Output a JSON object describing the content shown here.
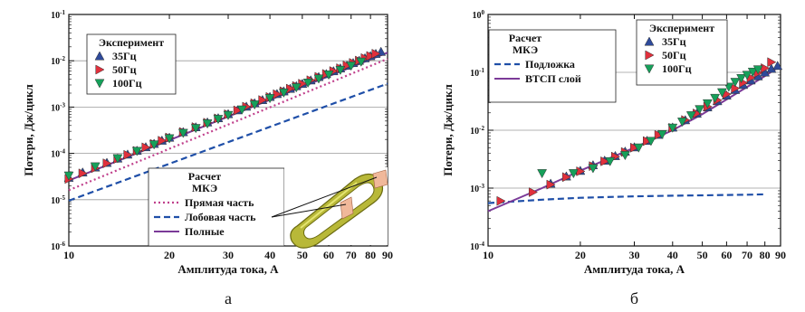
{
  "colors": {
    "s35": "#2e4a9a",
    "s50": "#e0303c",
    "s100": "#16a05a",
    "model_straight": "#c0408c",
    "model_end": "#1f4fa8",
    "model_total": "#7b3a98",
    "model_layer": "#7b3a98",
    "grid": "#9a9a9a"
  },
  "chart_data": [
    {
      "type": "scatter",
      "panel_label": "а",
      "xlabel": "Амплитуда тока, А",
      "ylabel": "Потери, Дж/цикл",
      "x_scale": "log",
      "y_scale": "log",
      "xlim": [
        10,
        90
      ],
      "ylim": [
        1e-06,
        0.1
      ],
      "x_ticks": [
        "10",
        "20",
        "30",
        "40",
        "50",
        "60",
        "70",
        "80",
        "90"
      ],
      "y_ticks": [
        {
          "base": "10",
          "exp": "-6"
        },
        {
          "base": "10",
          "exp": "-5"
        },
        {
          "base": "10",
          "exp": "-4"
        },
        {
          "base": "10",
          "exp": "-3"
        },
        {
          "base": "10",
          "exp": "-2"
        },
        {
          "base": "10",
          "exp": "-1"
        }
      ],
      "grid": "horizontal",
      "legend_experiment": {
        "title": "Эксперимент",
        "entries": [
          {
            "label": "35Гц",
            "marker": "triangle-up",
            "series": "s35"
          },
          {
            "label": "50Гц",
            "marker": "triangle-right",
            "series": "s50"
          },
          {
            "label": "100Гц",
            "marker": "triangle-down",
            "series": "s100"
          }
        ]
      },
      "legend_model": {
        "title_line1": "Расчет",
        "title_line2": "МКЭ",
        "entries": [
          {
            "label": "Прямая часть",
            "style": "dotted",
            "series": "model_straight"
          },
          {
            "label": "Лобовая часть",
            "style": "dashed",
            "series": "model_end"
          },
          {
            "label": "Полные",
            "style": "solid",
            "series": "model_total"
          }
        ]
      },
      "series": [
        {
          "key": "s35",
          "x": [
            10,
            11,
            12,
            13,
            14,
            15,
            16,
            17,
            18,
            19,
            20,
            22,
            24,
            26,
            28,
            30,
            32,
            34,
            36,
            38,
            40,
            42,
            44,
            46,
            48,
            50,
            53,
            56,
            59,
            62,
            65,
            68,
            71,
            74,
            77,
            80,
            83,
            86
          ],
          "y": [
            3e-05,
            3.9e-05,
            5e-05,
            6.3e-05,
            7.8e-05,
            9.5e-05,
            0.000115,
            0.000137,
            0.000162,
            0.00019,
            0.00022,
            0.00029,
            0.00037,
            0.00047,
            0.00058,
            0.00071,
            0.00086,
            0.00103,
            0.00122,
            0.00143,
            0.00167,
            0.00193,
            0.0022,
            0.0025,
            0.00285,
            0.0032,
            0.0038,
            0.0045,
            0.0052,
            0.006,
            0.0069,
            0.0079,
            0.009,
            0.0101,
            0.0114,
            0.0127,
            0.0142,
            0.0157
          ]
        },
        {
          "key": "s50",
          "x": [
            10,
            11,
            12,
            13,
            14,
            15,
            16,
            17,
            18,
            19,
            20,
            22,
            24,
            26,
            28,
            30,
            32,
            34,
            36,
            38,
            40,
            42,
            44,
            46,
            48,
            50,
            53,
            56,
            59,
            62,
            65,
            68,
            71,
            74,
            77,
            80,
            83
          ],
          "y": [
            2.8e-05,
            3.7e-05,
            4.8e-05,
            6.1e-05,
            7.6e-05,
            9.3e-05,
            0.000113,
            0.000135,
            0.00016,
            0.000188,
            0.00022,
            0.00029,
            0.00037,
            0.00046,
            0.00057,
            0.0007,
            0.00085,
            0.00102,
            0.00121,
            0.00142,
            0.00165,
            0.0019,
            0.0022,
            0.0025,
            0.00285,
            0.0032,
            0.0038,
            0.0045,
            0.0052,
            0.006,
            0.0069,
            0.0079,
            0.009,
            0.0101,
            0.0114,
            0.0127,
            0.0142
          ]
        },
        {
          "key": "s100",
          "x": [
            10,
            12,
            14,
            16,
            18,
            20,
            22,
            24,
            26,
            28,
            30,
            33,
            36,
            40,
            44,
            48,
            52,
            56,
            60,
            65,
            70,
            75
          ],
          "y": [
            3.3e-05,
            5.2e-05,
            7.8e-05,
            0.000112,
            0.000155,
            0.00021,
            0.000275,
            0.00035,
            0.00044,
            0.00055,
            0.00067,
            0.00088,
            0.00113,
            0.00155,
            0.00205,
            0.00265,
            0.00335,
            0.0041,
            0.005,
            0.0063,
            0.0078,
            0.0095
          ]
        },
        {
          "key": "model_straight",
          "x": [
            10,
            90
          ],
          "y": [
            1.6e-05,
            0.011
          ]
        },
        {
          "key": "model_end",
          "x": [
            10,
            90
          ],
          "y": [
            9.5e-06,
            0.0032
          ]
        },
        {
          "key": "model_total",
          "x": [
            10,
            90
          ],
          "y": [
            2.6e-05,
            0.015
          ]
        }
      ]
    },
    {
      "type": "scatter",
      "panel_label": "б",
      "xlabel": "Амплитуда тока, А",
      "ylabel": "Потери, Дж/цикл",
      "x_scale": "log",
      "y_scale": "log",
      "xlim": [
        10,
        90
      ],
      "ylim": [
        0.0001,
        1
      ],
      "x_ticks": [
        "10",
        "20",
        "30",
        "40",
        "50",
        "60",
        "70",
        "80",
        "90"
      ],
      "y_ticks": [
        {
          "base": "10",
          "exp": "-4"
        },
        {
          "base": "10",
          "exp": "-3"
        },
        {
          "base": "10",
          "exp": "-2"
        },
        {
          "base": "10",
          "exp": "-1"
        },
        {
          "base": "10",
          "exp": "0"
        }
      ],
      "grid": "horizontal",
      "legend_experiment": {
        "title": "Эксперимент",
        "entries": [
          {
            "label": "35Гц",
            "marker": "triangle-up",
            "series": "s35"
          },
          {
            "label": "50Гц",
            "marker": "triangle-right",
            "series": "s50"
          },
          {
            "label": "100Гц",
            "marker": "triangle-down",
            "series": "s100"
          }
        ]
      },
      "legend_model": {
        "title_line1": "Расчет",
        "title_line2": "МКЭ",
        "entries": [
          {
            "label": "Подложка",
            "style": "dashed",
            "series": "model_end"
          },
          {
            "label": "ВТСП слой",
            "style": "solid",
            "series": "model_layer"
          }
        ]
      },
      "series": [
        {
          "key": "s35",
          "x": [
            16,
            18,
            20,
            22,
            24,
            26,
            28,
            30,
            33,
            36,
            40,
            44,
            48,
            52,
            56,
            60,
            64,
            68,
            72,
            76,
            80,
            84,
            88
          ],
          "y": [
            0.0012,
            0.0016,
            0.002,
            0.0025,
            0.003,
            0.0036,
            0.0043,
            0.0051,
            0.0066,
            0.0084,
            0.0112,
            0.015,
            0.0195,
            0.025,
            0.032,
            0.04,
            0.05,
            0.061,
            0.073,
            0.086,
            0.1,
            0.116,
            0.13
          ]
        },
        {
          "key": "s50",
          "x": [
            11,
            14,
            16,
            18,
            20,
            22,
            24,
            26,
            28,
            30,
            33,
            36,
            40,
            44,
            48,
            52,
            56,
            60,
            64,
            68,
            72,
            76,
            80,
            84
          ],
          "y": [
            0.0006,
            0.00085,
            0.00115,
            0.00155,
            0.00195,
            0.0024,
            0.0029,
            0.0035,
            0.0042,
            0.005,
            0.0065,
            0.0083,
            0.011,
            0.015,
            0.0195,
            0.0255,
            0.033,
            0.042,
            0.053,
            0.066,
            0.081,
            0.098,
            0.118,
            0.15
          ]
        },
        {
          "key": "s100",
          "x": [
            15,
            19,
            22,
            25,
            28,
            31,
            34,
            37,
            40,
            43,
            46,
            49,
            52,
            55,
            58,
            61,
            64,
            67,
            70,
            73,
            76
          ],
          "y": [
            0.0018,
            0.0018,
            0.0022,
            0.0029,
            0.0037,
            0.005,
            0.0065,
            0.0085,
            0.011,
            0.014,
            0.018,
            0.023,
            0.029,
            0.036,
            0.045,
            0.056,
            0.068,
            0.079,
            0.09,
            0.102,
            0.112
          ]
        },
        {
          "key": "model_end",
          "x": [
            10,
            15,
            20,
            30,
            40,
            50,
            60,
            70,
            80
          ],
          "y": [
            0.00055,
            0.00063,
            0.00068,
            0.00072,
            0.00074,
            0.00075,
            0.00076,
            0.00077,
            0.00078
          ]
        },
        {
          "key": "model_layer",
          "x": [
            10,
            15,
            20,
            30,
            40,
            50,
            60,
            70,
            80,
            88
          ],
          "y": [
            0.0004,
            0.001,
            0.002,
            0.005,
            0.01,
            0.019,
            0.034,
            0.056,
            0.086,
            0.12
          ]
        }
      ]
    }
  ]
}
